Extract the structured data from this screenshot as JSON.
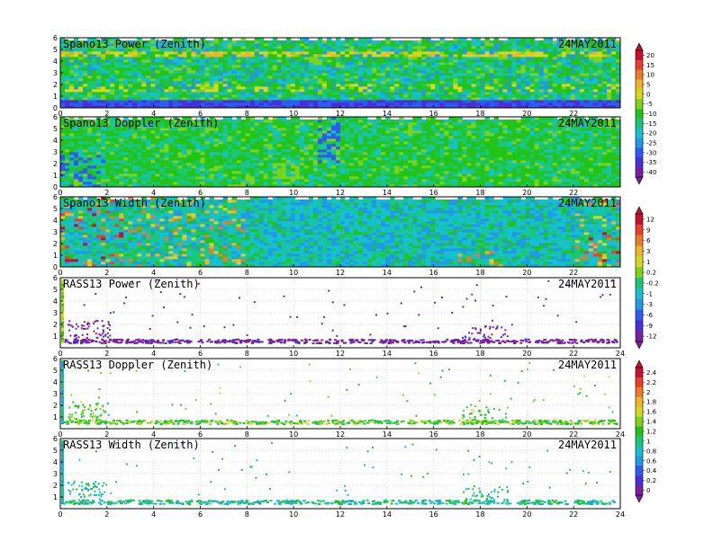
{
  "figure": {
    "date": "24MAY2011"
  },
  "colors": {
    "rainbow": [
      "#7a1fa2",
      "#4b2fd6",
      "#2d5cf0",
      "#1f9ae8",
      "#17c0d0",
      "#19c77a",
      "#22c41a",
      "#7ad41a",
      "#d6d81e",
      "#f0b428",
      "#ec7a2a",
      "#e8402a",
      "#c8102e"
    ],
    "grid": "#bdbdbd"
  },
  "colorbars": [
    {
      "labels": [
        "20",
        "15",
        "10",
        "5",
        "0",
        "-5",
        "-10",
        "-15",
        "-20",
        "-25",
        "-30",
        "-35",
        "-40"
      ]
    },
    {
      "labels": [
        "12",
        "9",
        "6",
        "3",
        "1",
        "0.2",
        "-0.2",
        "-1",
        "-3",
        "-6",
        "-9",
        "-12"
      ]
    },
    {
      "labels": [
        "2.4",
        "2.2",
        "2",
        "1.8",
        "1.6",
        "1.4",
        "1.2",
        "1",
        "0.8",
        "0.6",
        "0.4",
        "0.2",
        "0"
      ]
    }
  ],
  "chart_data": [
    {
      "type": "heatmap",
      "title": "Spano13 Power (Zenith)",
      "date_label": "24MAY2011",
      "x_ticks": [
        "0",
        "2",
        "4",
        "6",
        "8",
        "10",
        "12",
        "14",
        "16",
        "18",
        "20",
        "22"
      ],
      "xlim": [
        0,
        24
      ],
      "y_ticks": [
        "0",
        "1",
        "2",
        "3",
        "4",
        "5",
        "6"
      ],
      "ylim": [
        0,
        6
      ],
      "values_description_scale": [
        -40,
        20
      ]
    },
    {
      "type": "heatmap",
      "title": "Spano13 Doppler (Zenith)",
      "date_label": "24MAY2011",
      "x_ticks": [
        "0",
        "2",
        "4",
        "6",
        "8",
        "10",
        "12",
        "14",
        "16",
        "18",
        "20",
        "22"
      ],
      "xlim": [
        0,
        24
      ],
      "y_ticks": [
        "0",
        "1",
        "2",
        "3",
        "4",
        "5",
        "6"
      ],
      "ylim": [
        0,
        6
      ],
      "values_description_scale": [
        -40,
        20
      ]
    },
    {
      "type": "heatmap",
      "title": "Spano13 Width (Zenith)",
      "date_label": "24MAY2011",
      "x_ticks": [
        "0",
        "2",
        "4",
        "6",
        "8",
        "10",
        "12",
        "14",
        "16",
        "18",
        "20",
        "22"
      ],
      "xlim": [
        0,
        24
      ],
      "y_ticks": [
        "0",
        "1",
        "2",
        "3",
        "4",
        "5",
        "6"
      ],
      "ylim": [
        0,
        6
      ],
      "values_description_scale": [
        -12,
        12
      ]
    },
    {
      "type": "scatter",
      "title": "RASS13 Power (Zenith)",
      "date_label": "24MAY2011",
      "x_ticks": [
        "0",
        "2",
        "4",
        "6",
        "8",
        "10",
        "12",
        "14",
        "16",
        "18",
        "20",
        "22",
        "24"
      ],
      "xlim": [
        0,
        24
      ],
      "y_ticks": [
        "1",
        "2",
        "3",
        "4",
        "5",
        "6"
      ],
      "ylim": [
        0,
        6
      ],
      "values_description_scale": [
        -12,
        12
      ]
    },
    {
      "type": "scatter",
      "title": "RASS13 Doppler (Zenith)",
      "date_label": "24MAY2011",
      "x_ticks": [
        "0",
        "2",
        "4",
        "6",
        "8",
        "10",
        "12",
        "14",
        "16",
        "18",
        "20",
        "22",
        "24"
      ],
      "xlim": [
        0,
        24
      ],
      "y_ticks": [
        "1",
        "2",
        "3",
        "4",
        "5",
        "6"
      ],
      "ylim": [
        0,
        6
      ],
      "values_description_scale": [
        0,
        2.4
      ]
    },
    {
      "type": "scatter",
      "title": "RASS13 Width (Zenith)",
      "date_label": "24MAY2011",
      "x_ticks": [
        "0",
        "2",
        "4",
        "6",
        "8",
        "10",
        "12",
        "14",
        "16",
        "18",
        "20",
        "22",
        "24"
      ],
      "xlim": [
        0,
        24
      ],
      "y_ticks": [
        "1",
        "2",
        "3",
        "4",
        "5",
        "6"
      ],
      "ylim": [
        0,
        6
      ],
      "values_description_scale": [
        0,
        2.4
      ]
    }
  ]
}
